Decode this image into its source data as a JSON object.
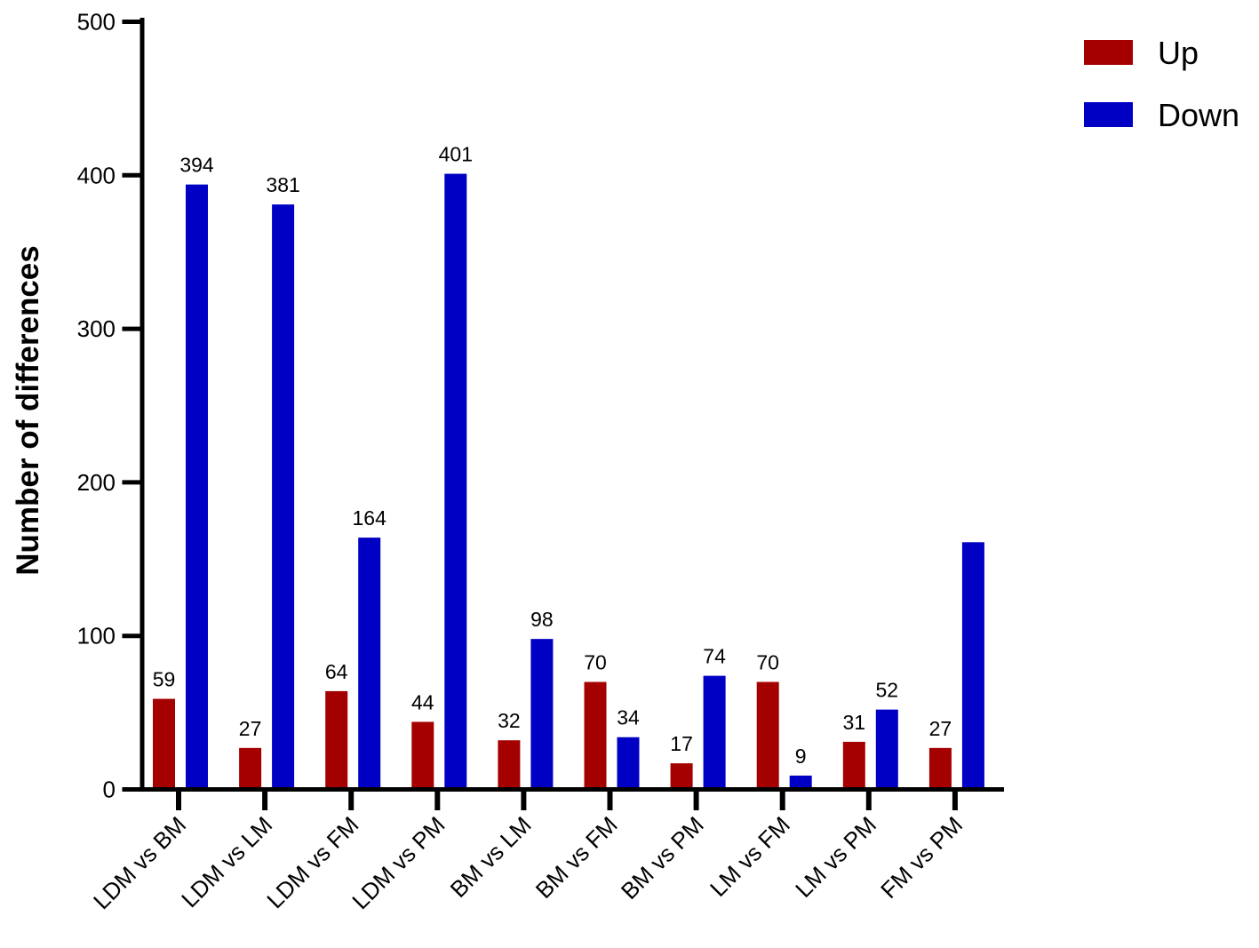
{
  "chart_data": {
    "type": "bar",
    "title": "",
    "xlabel": "",
    "ylabel": "Number of differences",
    "ylim": [
      0,
      500
    ],
    "yticks": [
      0,
      100,
      200,
      300,
      400,
      500
    ],
    "grid": false,
    "legend_position": "top-right",
    "categories": [
      "LDM vs BM",
      "LDM vs LM",
      "LDM vs FM",
      "LDM vs PM",
      "BM vs LM",
      "BM vs FM",
      "BM vs PM",
      "LM vs FM",
      "LM vs PM",
      "FM vs PM"
    ],
    "series": [
      {
        "name": "Up",
        "color": "#a50000",
        "values": [
          59,
          27,
          64,
          44,
          32,
          70,
          17,
          70,
          31,
          27
        ],
        "labels": [
          "59",
          "27",
          "64",
          "44",
          "32",
          "70",
          "17",
          "70",
          "31",
          "27"
        ]
      },
      {
        "name": "Down",
        "color": "#0000c4",
        "values": [
          394,
          381,
          164,
          401,
          98,
          34,
          74,
          9,
          52,
          161
        ],
        "labels": [
          "394",
          "381",
          "164",
          "401",
          "98",
          "34",
          "74",
          "9",
          "52",
          ""
        ]
      }
    ]
  }
}
